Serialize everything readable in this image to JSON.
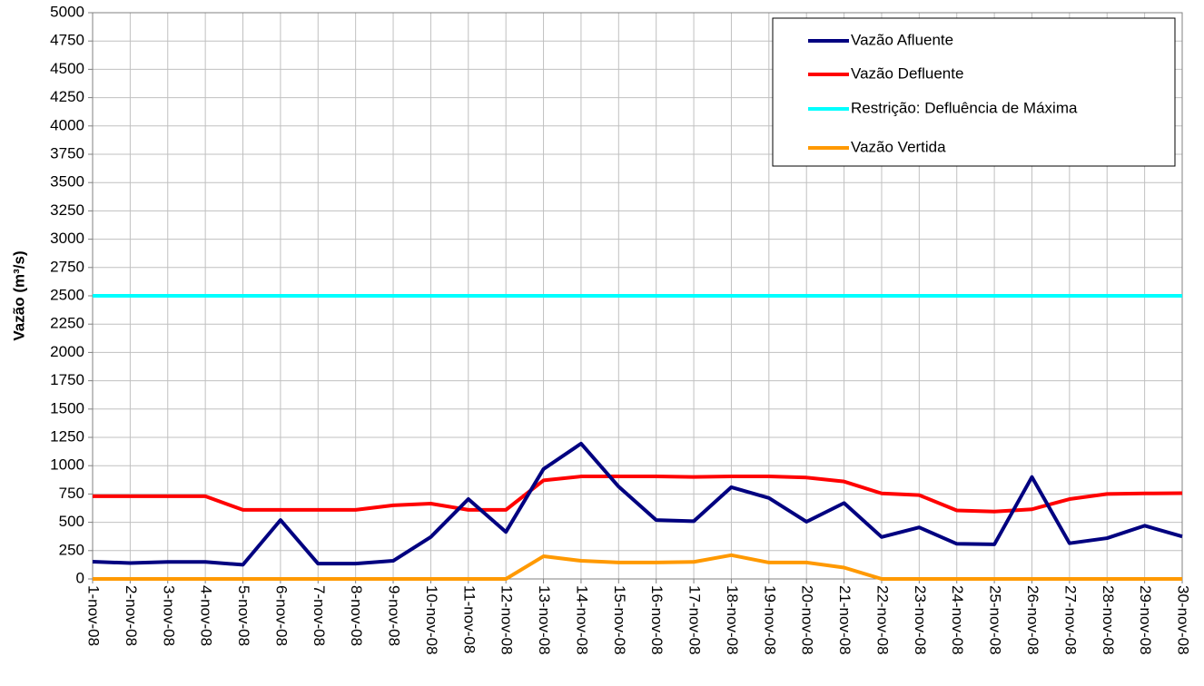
{
  "chart_data": {
    "type": "line",
    "ylabel": "Vazão (m³/s)",
    "categories": [
      "1-nov-08",
      "2-nov-08",
      "3-nov-08",
      "4-nov-08",
      "5-nov-08",
      "6-nov-08",
      "7-nov-08",
      "8-nov-08",
      "9-nov-08",
      "10-nov-08",
      "11-nov-08",
      "12-nov-08",
      "13-nov-08",
      "14-nov-08",
      "15-nov-08",
      "16-nov-08",
      "17-nov-08",
      "18-nov-08",
      "19-nov-08",
      "20-nov-08",
      "21-nov-08",
      "22-nov-08",
      "23-nov-08",
      "24-nov-08",
      "25-nov-08",
      "26-nov-08",
      "27-nov-08",
      "28-nov-08",
      "29-nov-08",
      "30-nov-08"
    ],
    "series": [
      {
        "name": "Vazão Afluente",
        "color": "#000080",
        "values": [
          152,
          140,
          150,
          150,
          125,
          520,
          135,
          135,
          160,
          370,
          705,
          415,
          970,
          1195,
          815,
          520,
          510,
          810,
          715,
          505,
          670,
          370,
          455,
          310,
          305,
          900,
          315,
          360,
          470,
          375
        ]
      },
      {
        "name": "Vazão Defluente",
        "color": "#ff0000",
        "values": [
          730,
          730,
          730,
          730,
          610,
          610,
          610,
          610,
          650,
          665,
          610,
          610,
          870,
          905,
          905,
          905,
          900,
          905,
          905,
          895,
          860,
          755,
          740,
          605,
          595,
          615,
          705,
          750,
          755,
          757
        ]
      },
      {
        "name": "Restrição: Defluência de Máxima",
        "color": "#00ffff",
        "values": [
          2500,
          2500,
          2500,
          2500,
          2500,
          2500,
          2500,
          2500,
          2500,
          2500,
          2500,
          2500,
          2500,
          2500,
          2500,
          2500,
          2500,
          2500,
          2500,
          2500,
          2500,
          2500,
          2500,
          2500,
          2500,
          2500,
          2500,
          2500,
          2500,
          2500
        ]
      },
      {
        "name": "Vazão Vertida",
        "color": "#ff9900",
        "values": [
          0,
          0,
          0,
          0,
          0,
          0,
          0,
          0,
          0,
          0,
          0,
          0,
          200,
          160,
          145,
          145,
          150,
          210,
          145,
          145,
          100,
          0,
          0,
          0,
          0,
          0,
          0,
          0,
          0,
          0
        ]
      }
    ],
    "ylim": [
      0,
      5000
    ],
    "yticks": [
      0,
      250,
      500,
      750,
      1000,
      1250,
      1500,
      1750,
      2000,
      2250,
      2500,
      2750,
      3000,
      3250,
      3500,
      3750,
      4000,
      4250,
      4500,
      4750,
      5000
    ],
    "grid": true,
    "legend": "upper right"
  }
}
